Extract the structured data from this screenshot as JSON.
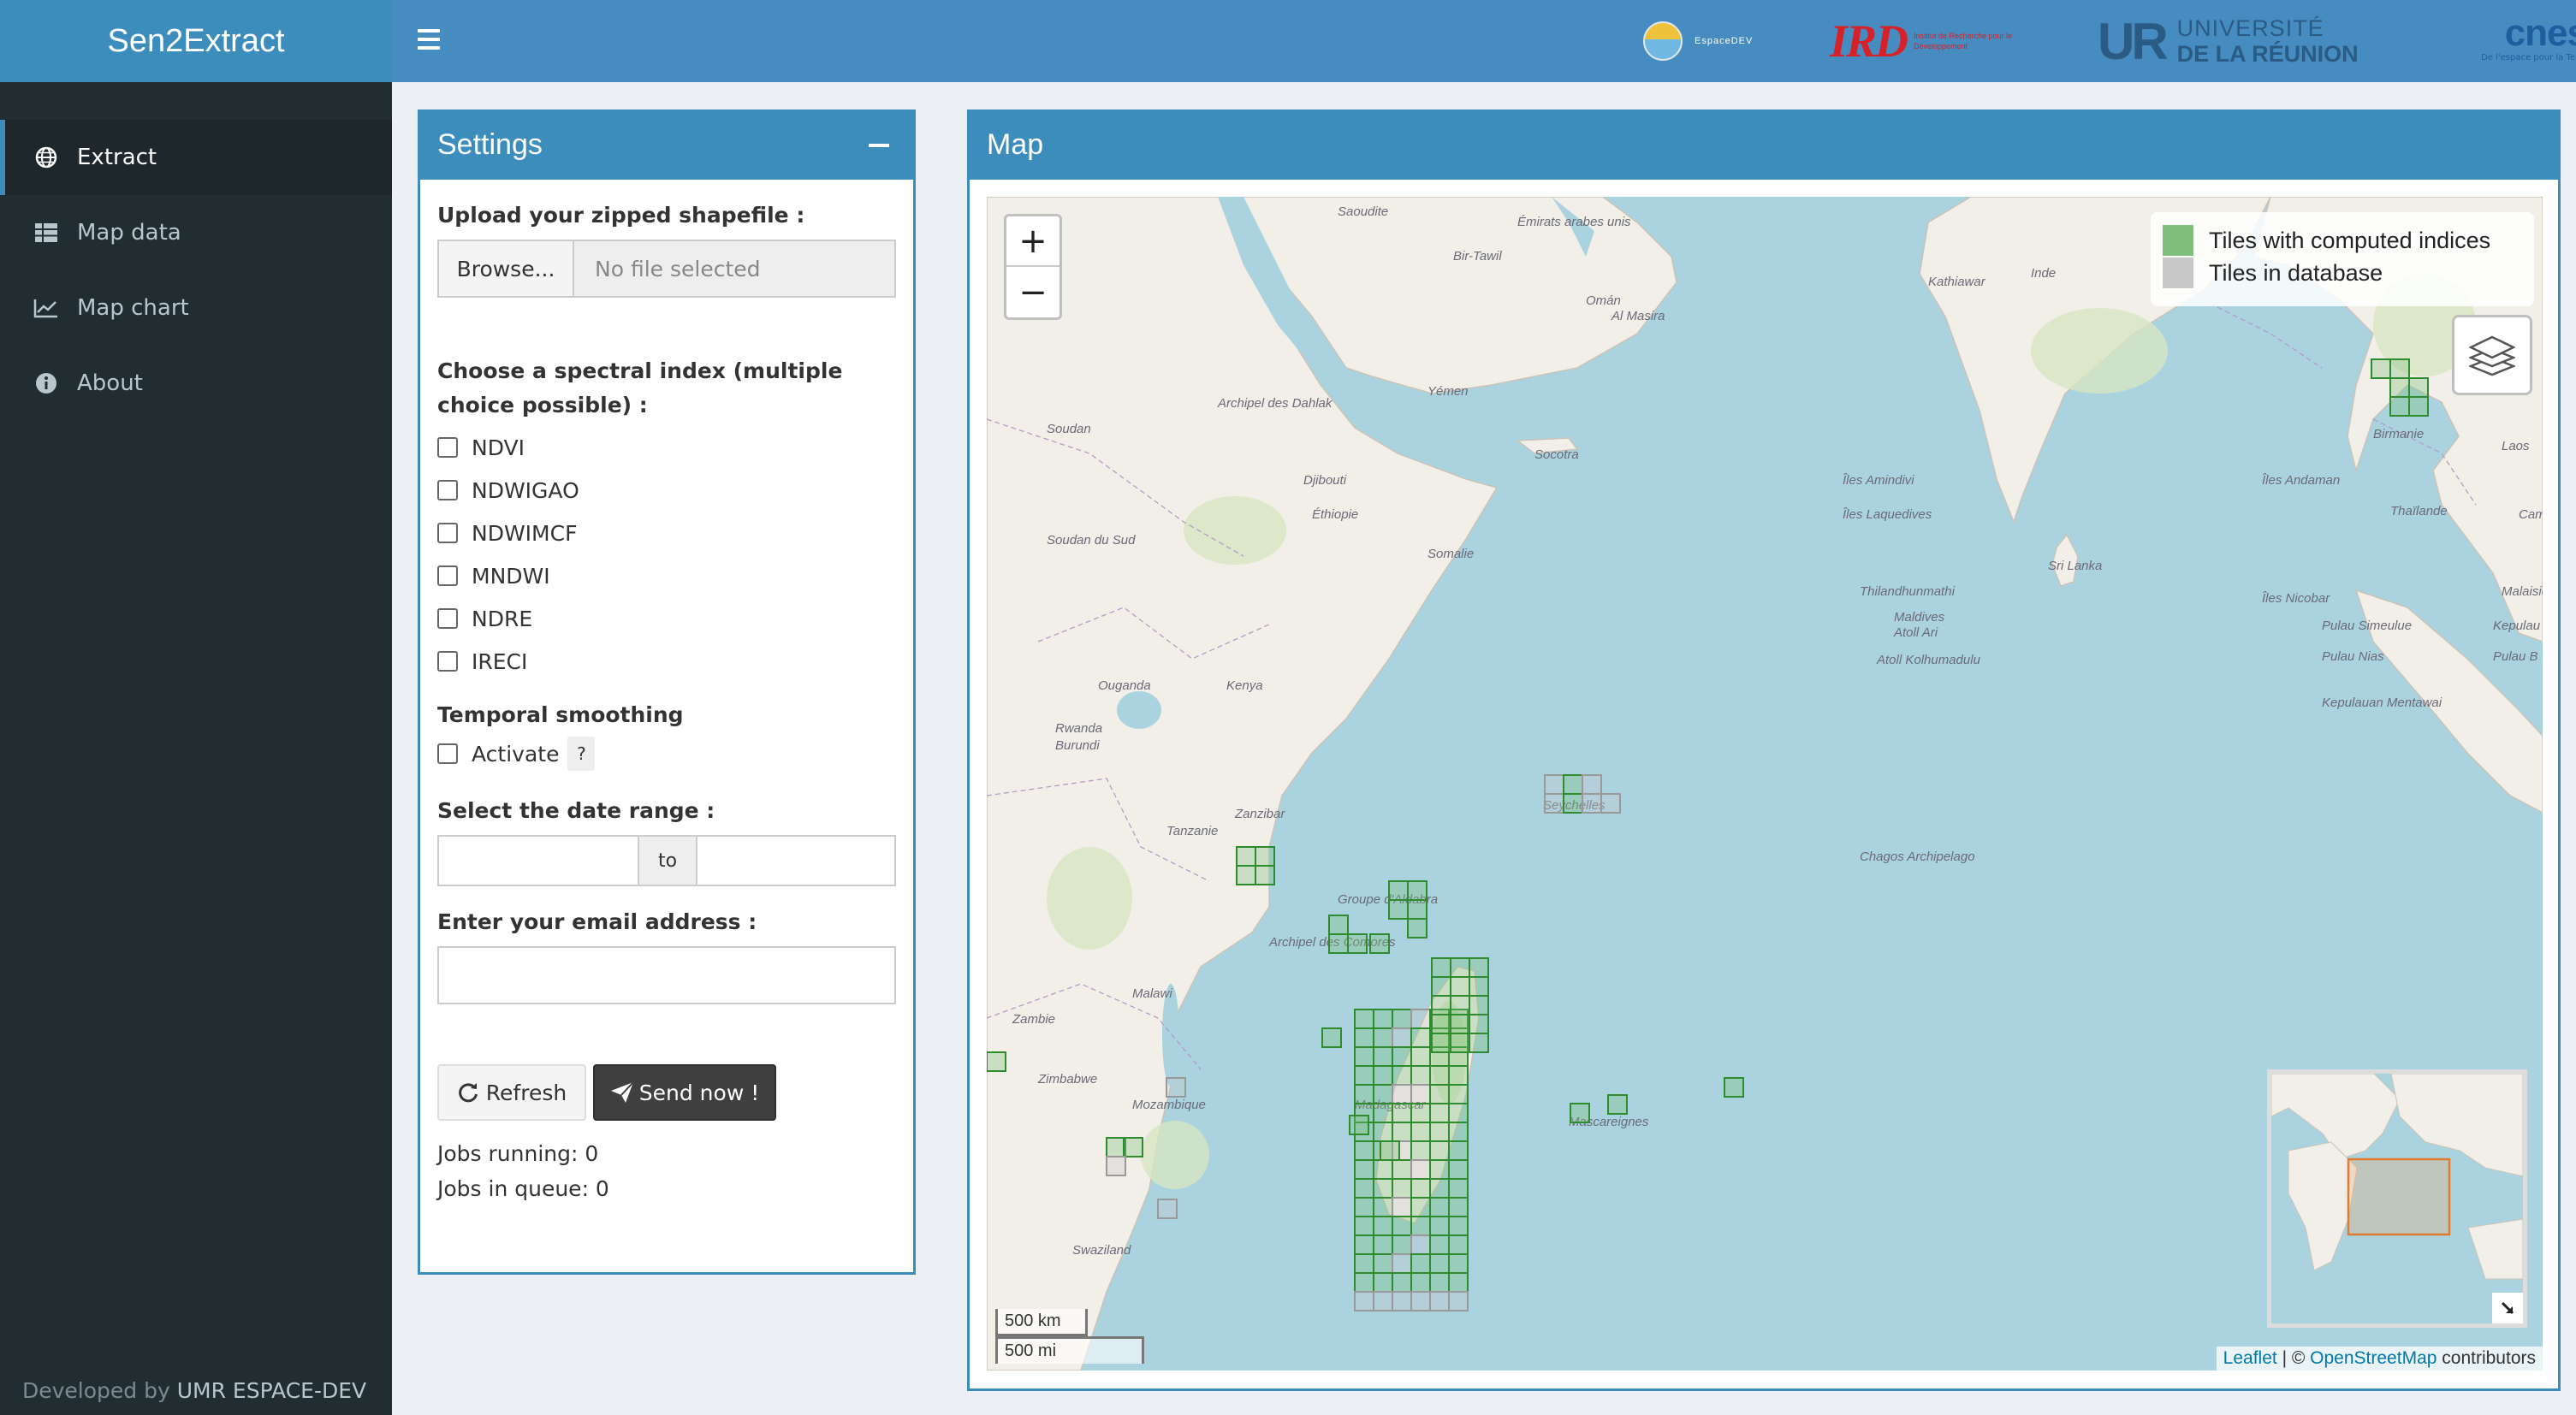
{
  "app": {
    "title": "Sen2Extract"
  },
  "partners": {
    "espace": "EspaceDEV",
    "ird_mark": "IRD",
    "ird_caption": "Institut de Recherche pour le Développement",
    "ur_mark": "UR",
    "ur_line1": "UNIVERSITÉ",
    "ur_line2": "DE LA RÉUNION",
    "cnes": "cnes",
    "cnes_tag": "De l'espace pour la Terre"
  },
  "sidebar": {
    "items": [
      {
        "label": "Extract",
        "icon": "globe-icon",
        "active": true
      },
      {
        "label": "Map data",
        "icon": "table-icon"
      },
      {
        "label": "Map chart",
        "icon": "chart-icon"
      },
      {
        "label": "About",
        "icon": "info-icon"
      }
    ],
    "footer_prefix": "Developed by",
    "footer_org": "UMR ESPACE-DEV"
  },
  "settings": {
    "title": "Settings",
    "upload_label": "Upload your zipped shapefile :",
    "browse_label": "Browse...",
    "no_file": "No file selected",
    "index_label": "Choose a spectral index (multiple choice possible) :",
    "indices": [
      "NDVI",
      "NDWIGAO",
      "NDWIMCF",
      "MNDWI",
      "NDRE",
      "IRECI"
    ],
    "smoothing_label": "Temporal smoothing",
    "activate_label": "Activate",
    "help_label": "?",
    "date_label": "Select the date range :",
    "date_to": "to",
    "email_label": "Enter your email address :",
    "refresh_label": "Refresh",
    "send_label": "Send now !",
    "jobs_running": "Jobs running: 0",
    "jobs_queue": "Jobs in queue: 0"
  },
  "map": {
    "title": "Map",
    "zoom_in": "+",
    "zoom_out": "−",
    "legend": [
      {
        "label": "Tiles with computed indices",
        "color": "#7fbf7b"
      },
      {
        "label": "Tiles in database",
        "color": "#c8c8c8"
      }
    ],
    "scale_km": "500 km",
    "scale_mi": "500 mi",
    "attribution_leaflet": "Leaflet",
    "attribution_sep": " | © ",
    "attribution_osm": "OpenStreetMap",
    "attribution_suffix": " contributors",
    "place_labels": [
      "Saoudite",
      "Émirats arabes unis",
      "Bir-Tawil",
      "Omán",
      "Al Masira",
      "Kathiawar",
      "Inde",
      "Archipel des Dahlak",
      "Yémen",
      "Soudan",
      "Djibouti",
      "Socotra",
      "Éthiopie",
      "Somalie",
      "Soudan du Sud",
      "Îles Amindivi",
      "Îles Laquedives",
      "Îles Andaman",
      "Sri Lanka",
      "Îles Nicobar",
      "Thilandhunmathi",
      "Maldives",
      "Atoll Ari",
      "Atoll Kolhumadulu",
      "Ouganda",
      "Kenya",
      "Rwanda",
      "Burundi",
      "Tanzanie",
      "Zanzibar",
      "Seychelles",
      "Chagos Archipelago",
      "Groupe d'Aldabra",
      "Archipel des Comores",
      "Malawi",
      "Zambie",
      "Zimbabwe",
      "Mozambique",
      "Madagascar",
      "Mascareignes",
      "Swaziland",
      "Birmanie",
      "Thaïlande",
      "Laos",
      "Malaisie",
      "Pulau Simeulue",
      "Pulau Nias",
      "Kepulauan Mentawai",
      "Cambodge",
      "Kepulau",
      "Pulau B"
    ]
  }
}
